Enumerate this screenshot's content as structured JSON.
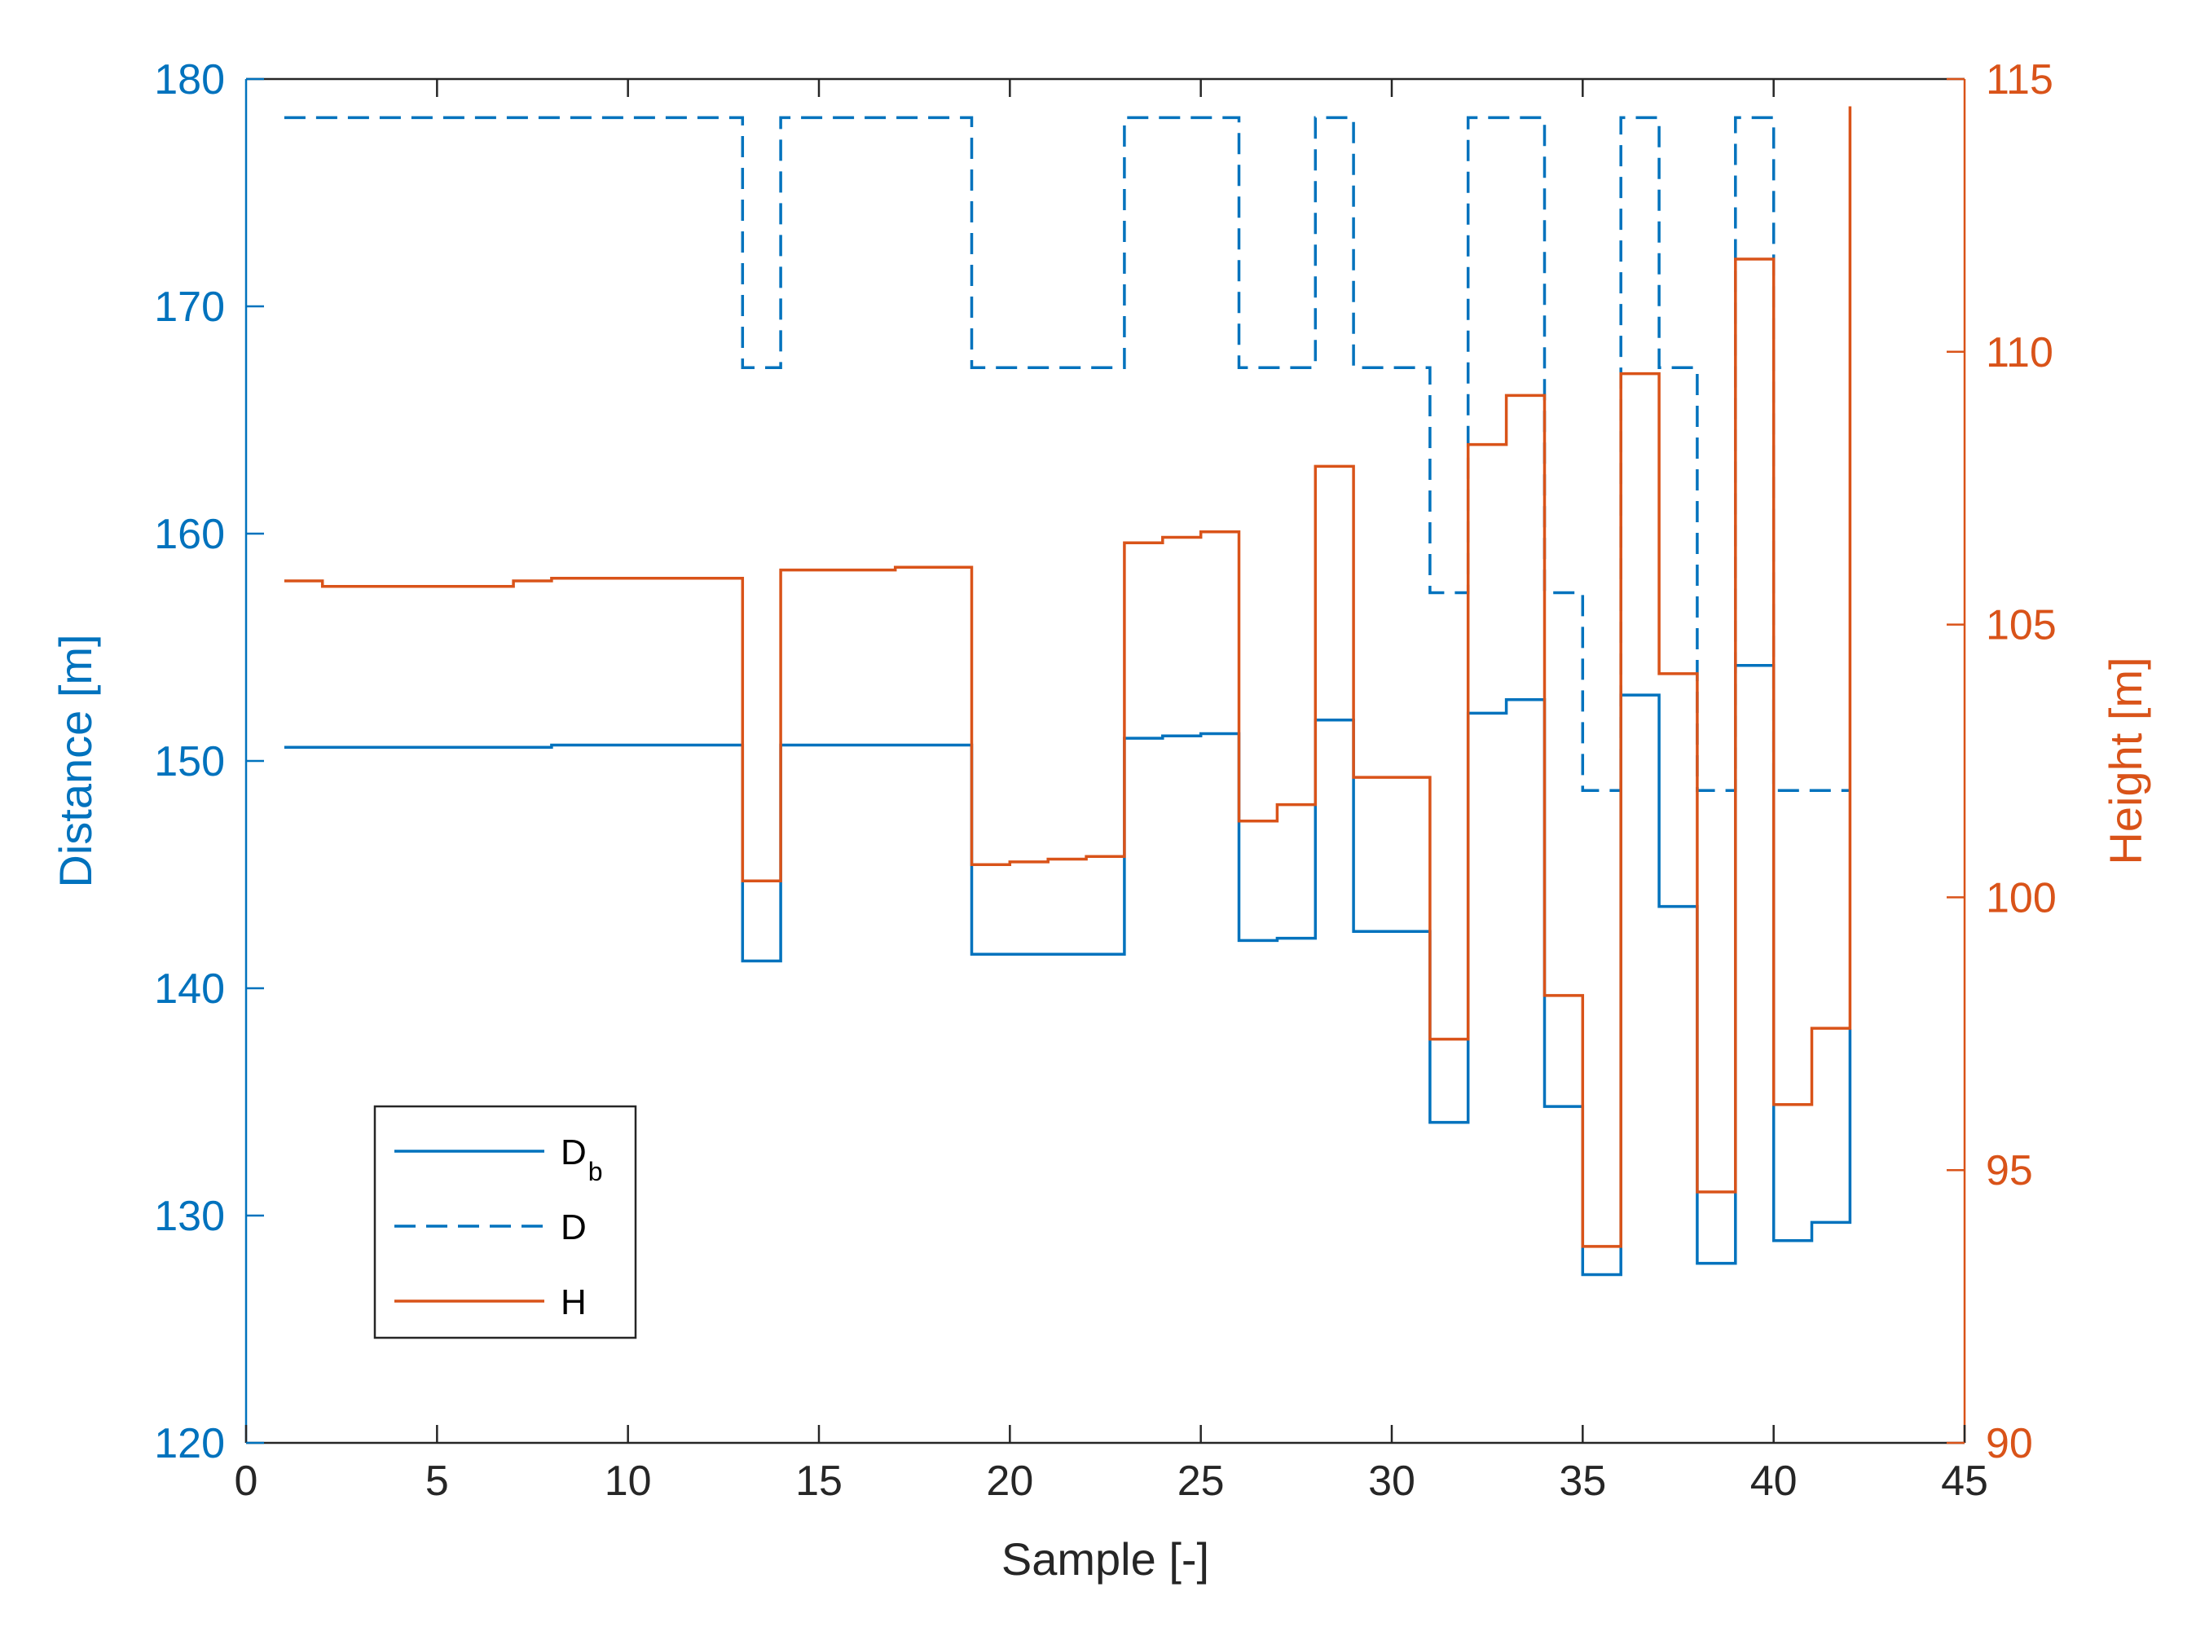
{
  "chart_data": {
    "type": "line",
    "subtype": "stairs",
    "title": "",
    "xlabel": "Sample [-]",
    "ylabel_left": "Distance [m]",
    "ylabel_right": "Height [m]",
    "xlim": [
      0,
      45
    ],
    "ylim_left": [
      120,
      180
    ],
    "ylim_right": [
      90,
      115
    ],
    "xticks": [
      "0",
      "5",
      "10",
      "15",
      "20",
      "25",
      "30",
      "35",
      "40",
      "45"
    ],
    "yticks_left": [
      "120",
      "130",
      "140",
      "150",
      "160",
      "170",
      "180"
    ],
    "yticks_right": [
      "90",
      "95",
      "100",
      "105",
      "110",
      "115"
    ],
    "grid": false,
    "legend_position": "lower-left",
    "colors": {
      "blue": "#0072BD",
      "orange": "#D95319",
      "axis": "#262626"
    },
    "series": [
      {
        "name": "D_b",
        "legend_main": "D",
        "legend_sub": "b",
        "axis": "left",
        "style": "solid",
        "color": "#0072BD",
        "x": [
          1,
          2,
          3,
          4,
          5,
          6,
          7,
          8,
          9,
          10,
          11,
          12,
          13,
          14,
          15,
          16,
          17,
          18,
          19,
          20,
          21,
          22,
          23,
          24,
          25,
          26,
          27,
          28,
          29,
          30,
          31,
          32,
          33,
          34,
          35,
          36,
          37,
          38,
          39,
          40,
          41,
          42
        ],
        "values": [
          150.6,
          150.6,
          150.6,
          150.6,
          150.6,
          150.6,
          150.6,
          150.7,
          150.7,
          150.7,
          150.7,
          150.7,
          141.2,
          150.7,
          150.7,
          150.7,
          150.7,
          150.7,
          141.5,
          141.5,
          141.5,
          141.5,
          151.0,
          151.1,
          151.2,
          142.1,
          142.2,
          151.8,
          142.5,
          142.5,
          134.1,
          152.1,
          152.7,
          134.8,
          127.4,
          152.9,
          143.6,
          127.9,
          154.2,
          128.9,
          129.7,
          138.2
        ]
      },
      {
        "name": "D",
        "legend_main": "D",
        "axis": "left",
        "style": "dashed",
        "color": "#0072BD",
        "x": [
          1,
          2,
          3,
          4,
          5,
          6,
          7,
          8,
          9,
          10,
          11,
          12,
          13,
          14,
          15,
          16,
          17,
          18,
          19,
          20,
          21,
          22,
          23,
          24,
          25,
          26,
          27,
          28,
          29,
          30,
          31,
          32,
          33,
          34,
          35,
          36,
          37,
          38,
          39,
          40,
          41,
          42
        ],
        "values": [
          178.3,
          178.3,
          178.3,
          178.3,
          178.3,
          178.3,
          178.3,
          178.3,
          178.3,
          178.3,
          178.3,
          178.3,
          167.3,
          178.3,
          178.3,
          178.3,
          178.3,
          178.3,
          167.3,
          167.3,
          167.3,
          167.3,
          178.3,
          178.3,
          178.3,
          167.3,
          167.3,
          178.3,
          167.3,
          167.3,
          157.4,
          178.3,
          178.3,
          157.4,
          148.7,
          178.3,
          167.3,
          148.7,
          178.3,
          148.7,
          148.7,
          148.7
        ]
      },
      {
        "name": "H",
        "legend_main": "H",
        "axis": "right",
        "style": "solid",
        "color": "#D95319",
        "x": [
          1,
          2,
          3,
          4,
          5,
          6,
          7,
          8,
          9,
          10,
          11,
          12,
          13,
          14,
          15,
          16,
          17,
          18,
          19,
          20,
          21,
          22,
          23,
          24,
          25,
          26,
          27,
          28,
          29,
          30,
          31,
          32,
          33,
          34,
          35,
          36,
          37,
          38,
          39,
          40,
          41,
          42
        ],
        "values": [
          105.8,
          105.7,
          105.7,
          105.7,
          105.7,
          105.7,
          105.8,
          105.85,
          105.85,
          105.85,
          105.85,
          105.85,
          100.3,
          106.0,
          106.0,
          106.0,
          106.05,
          106.05,
          100.6,
          100.65,
          100.7,
          100.75,
          106.5,
          106.6,
          106.7,
          101.4,
          101.7,
          107.9,
          102.2,
          102.2,
          97.4,
          108.3,
          109.2,
          98.2,
          93.6,
          109.6,
          104.1,
          94.6,
          111.7,
          96.2,
          97.6,
          114.5
        ]
      }
    ]
  }
}
